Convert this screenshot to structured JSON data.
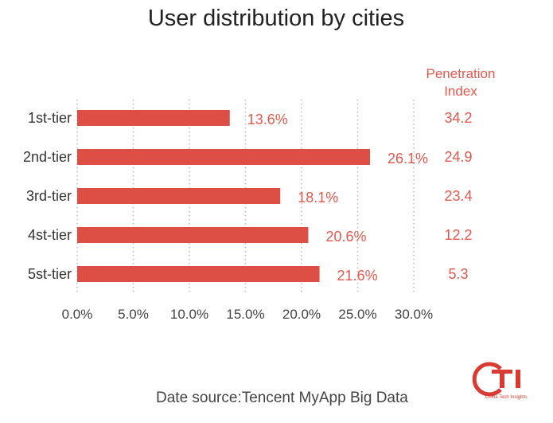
{
  "chart_data": {
    "type": "bar",
    "orientation": "horizontal",
    "title": "User distribution by cities",
    "categories": [
      "1st-tier",
      "2nd-tier",
      "3rd-tier",
      "4st-tier",
      "5st-tier"
    ],
    "values": [
      13.6,
      26.1,
      18.1,
      20.6,
      21.6
    ],
    "value_labels": [
      "13.6%",
      "26.1%",
      "18.1%",
      "20.6%",
      "21.6%"
    ],
    "xlim": [
      0,
      30
    ],
    "x_ticks": [
      "0.0%",
      "5.0%",
      "10.0%",
      "15.0%",
      "20.0%",
      "25.0%",
      "30.0%"
    ],
    "grid": "vertical-dotted",
    "bar_color": "#dd4f44",
    "label_color": "#e8574c",
    "penetration_index": {
      "header_line1": "Penetration",
      "header_line2": "Index",
      "values": [
        "34.2",
        "24.9",
        "23.4",
        "12.2",
        "5.3"
      ]
    }
  },
  "footer": {
    "source": "Date source:Tencent MyApp Big Data",
    "logo_text": "CTi",
    "logo_subtitle": "China Tech Insights",
    "logo_color": "#d93a32"
  }
}
